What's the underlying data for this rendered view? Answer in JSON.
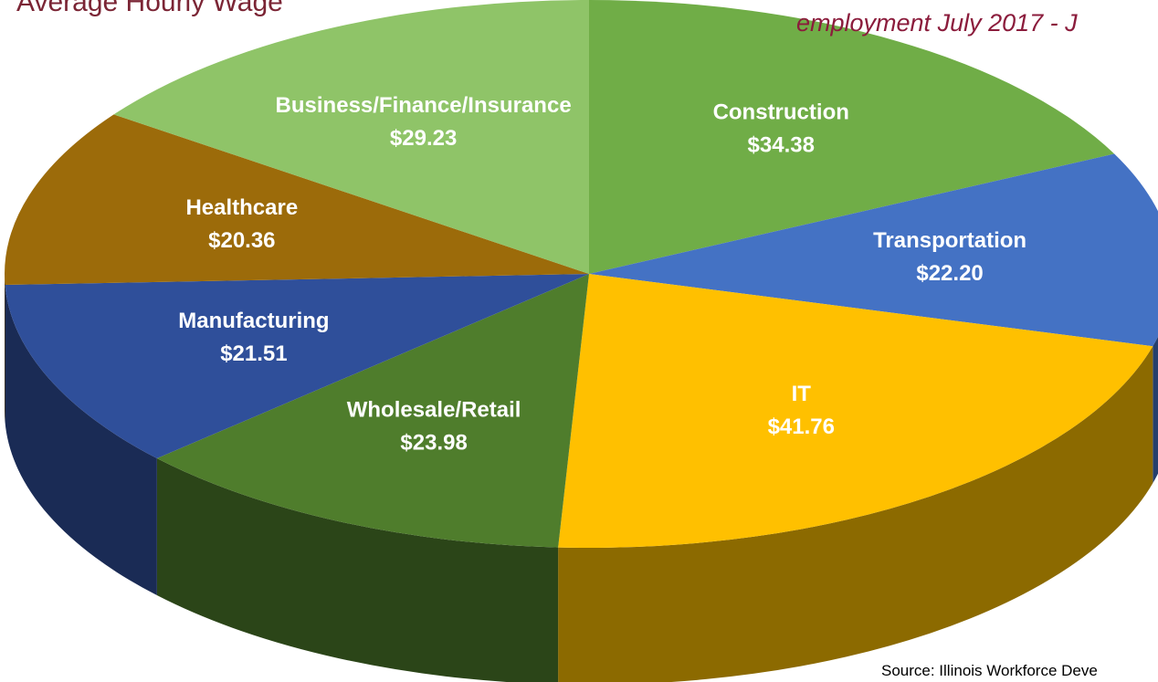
{
  "chart_data": {
    "type": "pie3d",
    "title": "Average Hourly Wage",
    "subtitle": "employment July 2017 - J",
    "source": "Source: Illinois Workforce Deve",
    "categories": [
      "Construction",
      "Transportation",
      "IT",
      "Wholesale/Retail",
      "Manufacturing",
      "Healthcare",
      "Business/Finance/Insurance"
    ],
    "values": [
      34.38,
      22.2,
      41.76,
      23.98,
      21.51,
      20.36,
      29.23
    ],
    "value_labels": [
      "$34.38",
      "$22.20",
      "$41.76",
      "$23.98",
      "$21.51",
      "$20.36",
      "$29.23"
    ],
    "colors": [
      "#70ad47",
      "#4472c4",
      "#ffc000",
      "#4f7d2c",
      "#2f4f9a",
      "#9c6b0a",
      "#8fc468"
    ]
  }
}
